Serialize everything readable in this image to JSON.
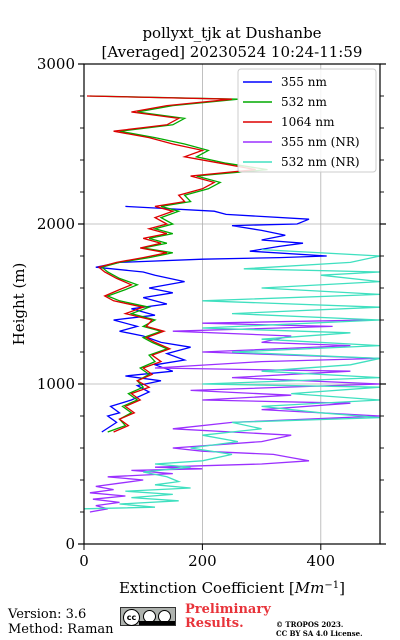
{
  "chart_data": {
    "type": "line",
    "title": "pollyxt_tjk at Dushanbe",
    "subtitle": "[Averaged] 20230524 10:24-11:59",
    "xlabel": "Extinction Coefficient [Mm⁻¹]",
    "ylabel": "Height (m)",
    "xlim": [
      0,
      500
    ],
    "ylim": [
      0,
      3000
    ],
    "xticks": [
      0,
      200,
      400
    ],
    "yticks": [
      0,
      1000,
      2000,
      3000
    ],
    "grid": true,
    "legend_position": "top-right",
    "series": [
      {
        "name": "355 nm",
        "color": "#0000ff",
        "points": [
          [
            30,
            700
          ],
          [
            55,
            760
          ],
          [
            40,
            800
          ],
          [
            60,
            820
          ],
          [
            45,
            860
          ],
          [
            80,
            900
          ],
          [
            110,
            950
          ],
          [
            90,
            990
          ],
          [
            130,
            1020
          ],
          [
            70,
            1050
          ],
          [
            150,
            1080
          ],
          [
            120,
            1120
          ],
          [
            170,
            1150
          ],
          [
            140,
            1190
          ],
          [
            180,
            1230
          ],
          [
            130,
            1260
          ],
          [
            100,
            1300
          ],
          [
            60,
            1330
          ],
          [
            90,
            1360
          ],
          [
            50,
            1400
          ],
          [
            120,
            1430
          ],
          [
            80,
            1470
          ],
          [
            140,
            1500
          ],
          [
            100,
            1540
          ],
          [
            150,
            1570
          ],
          [
            110,
            1600
          ],
          [
            170,
            1640
          ],
          [
            120,
            1680
          ],
          [
            100,
            1700
          ],
          [
            20,
            1730
          ],
          [
            60,
            1760
          ],
          [
            200,
            1780
          ],
          [
            330,
            1790
          ],
          [
            410,
            1800
          ],
          [
            280,
            1830
          ],
          [
            330,
            1860
          ],
          [
            370,
            1880
          ],
          [
            300,
            1900
          ],
          [
            340,
            1930
          ],
          [
            300,
            1960
          ],
          [
            250,
            1990
          ],
          [
            360,
            2000
          ],
          [
            380,
            2030
          ],
          [
            240,
            2060
          ],
          [
            220,
            2080
          ],
          [
            120,
            2100
          ],
          [
            70,
            2110
          ]
        ]
      },
      {
        "name": "532 nm",
        "color": "#00aa00",
        "points": [
          [
            40,
            700
          ],
          [
            70,
            740
          ],
          [
            60,
            780
          ],
          [
            80,
            820
          ],
          [
            65,
            860
          ],
          [
            90,
            900
          ],
          [
            75,
            940
          ],
          [
            100,
            980
          ],
          [
            90,
            1020
          ],
          [
            110,
            1060
          ],
          [
            95,
            1100
          ],
          [
            120,
            1140
          ],
          [
            110,
            1180
          ],
          [
            140,
            1220
          ],
          [
            115,
            1260
          ],
          [
            100,
            1290
          ],
          [
            130,
            1330
          ],
          [
            100,
            1360
          ],
          [
            120,
            1400
          ],
          [
            80,
            1440
          ],
          [
            110,
            1480
          ],
          [
            60,
            1520
          ],
          [
            40,
            1550
          ],
          [
            70,
            1590
          ],
          [
            90,
            1620
          ],
          [
            60,
            1660
          ],
          [
            40,
            1700
          ],
          [
            30,
            1730
          ],
          [
            60,
            1760
          ],
          [
            110,
            1790
          ],
          [
            150,
            1820
          ],
          [
            100,
            1850
          ],
          [
            140,
            1880
          ],
          [
            110,
            1910
          ],
          [
            150,
            1940
          ],
          [
            120,
            1970
          ],
          [
            150,
            2000
          ],
          [
            130,
            2040
          ],
          [
            160,
            2080
          ],
          [
            130,
            2110
          ],
          [
            180,
            2140
          ],
          [
            170,
            2180
          ],
          [
            210,
            2220
          ],
          [
            230,
            2260
          ],
          [
            190,
            2300
          ],
          [
            310,
            2340
          ],
          [
            240,
            2380
          ],
          [
            190,
            2420
          ],
          [
            210,
            2460
          ],
          [
            170,
            2500
          ],
          [
            120,
            2540
          ],
          [
            60,
            2580
          ],
          [
            150,
            2620
          ],
          [
            170,
            2660
          ],
          [
            90,
            2700
          ],
          [
            150,
            2740
          ],
          [
            260,
            2780
          ],
          [
            10,
            2800
          ]
        ]
      },
      {
        "name": "1064 nm",
        "color": "#dd0000",
        "points": [
          [
            50,
            700
          ],
          [
            75,
            740
          ],
          [
            60,
            780
          ],
          [
            85,
            820
          ],
          [
            70,
            860
          ],
          [
            95,
            900
          ],
          [
            80,
            940
          ],
          [
            110,
            980
          ],
          [
            90,
            1020
          ],
          [
            115,
            1060
          ],
          [
            100,
            1100
          ],
          [
            130,
            1140
          ],
          [
            115,
            1180
          ],
          [
            145,
            1220
          ],
          [
            120,
            1260
          ],
          [
            105,
            1290
          ],
          [
            135,
            1330
          ],
          [
            105,
            1360
          ],
          [
            115,
            1400
          ],
          [
            70,
            1440
          ],
          [
            100,
            1480
          ],
          [
            50,
            1520
          ],
          [
            35,
            1550
          ],
          [
            60,
            1590
          ],
          [
            80,
            1620
          ],
          [
            55,
            1660
          ],
          [
            35,
            1700
          ],
          [
            25,
            1730
          ],
          [
            55,
            1760
          ],
          [
            100,
            1790
          ],
          [
            140,
            1820
          ],
          [
            95,
            1850
          ],
          [
            130,
            1880
          ],
          [
            100,
            1910
          ],
          [
            140,
            1940
          ],
          [
            110,
            1970
          ],
          [
            140,
            2000
          ],
          [
            120,
            2040
          ],
          [
            150,
            2080
          ],
          [
            120,
            2110
          ],
          [
            170,
            2140
          ],
          [
            160,
            2180
          ],
          [
            200,
            2220
          ],
          [
            220,
            2260
          ],
          [
            180,
            2300
          ],
          [
            290,
            2340
          ],
          [
            230,
            2380
          ],
          [
            170,
            2420
          ],
          [
            200,
            2460
          ],
          [
            150,
            2500
          ],
          [
            110,
            2540
          ],
          [
            50,
            2580
          ],
          [
            140,
            2620
          ],
          [
            160,
            2660
          ],
          [
            80,
            2700
          ],
          [
            140,
            2740
          ],
          [
            250,
            2780
          ],
          [
            5,
            2800
          ]
        ]
      },
      {
        "name": "355 nm (NR)",
        "color": "#9b30ff",
        "points": [
          [
            10,
            200
          ],
          [
            40,
            220
          ],
          [
            20,
            240
          ],
          [
            60,
            260
          ],
          [
            15,
            280
          ],
          [
            70,
            300
          ],
          [
            10,
            320
          ],
          [
            50,
            340
          ],
          [
            20,
            360
          ],
          [
            60,
            380
          ],
          [
            100,
            400
          ],
          [
            40,
            420
          ],
          [
            150,
            440
          ],
          [
            80,
            460
          ],
          [
            200,
            470
          ],
          [
            120,
            480
          ],
          [
            300,
            500
          ],
          [
            380,
            520
          ],
          [
            350,
            540
          ],
          [
            320,
            560
          ],
          [
            200,
            580
          ],
          [
            150,
            600
          ],
          [
            300,
            640
          ],
          [
            350,
            680
          ],
          [
            150,
            720
          ],
          [
            250,
            760
          ],
          [
            500,
            800
          ],
          [
            300,
            840
          ],
          [
            450,
            880
          ],
          [
            200,
            900
          ],
          [
            350,
            930
          ],
          [
            180,
            960
          ],
          [
            500,
            1000
          ],
          [
            250,
            1040
          ],
          [
            450,
            1080
          ],
          [
            120,
            1100
          ],
          [
            300,
            1140
          ],
          [
            500,
            1160
          ],
          [
            200,
            1200
          ],
          [
            450,
            1240
          ],
          [
            300,
            1260
          ],
          [
            350,
            1300
          ],
          [
            150,
            1330
          ],
          [
            420,
            1360
          ],
          [
            200,
            1380
          ],
          [
            480,
            1400
          ]
        ]
      },
      {
        "name": "532 nm (NR)",
        "color": "#40e0c0",
        "points": [
          [
            0,
            220
          ],
          [
            120,
            230
          ],
          [
            60,
            250
          ],
          [
            160,
            270
          ],
          [
            80,
            290
          ],
          [
            150,
            310
          ],
          [
            70,
            330
          ],
          [
            180,
            350
          ],
          [
            120,
            370
          ],
          [
            160,
            390
          ],
          [
            140,
            420
          ],
          [
            100,
            450
          ],
          [
            180,
            480
          ],
          [
            120,
            500
          ],
          [
            200,
            520
          ],
          [
            250,
            560
          ],
          [
            180,
            600
          ],
          [
            260,
            640
          ],
          [
            200,
            680
          ],
          [
            300,
            720
          ],
          [
            250,
            760
          ],
          [
            500,
            790
          ],
          [
            400,
            820
          ],
          [
            300,
            860
          ],
          [
            500,
            900
          ],
          [
            350,
            940
          ],
          [
            500,
            980
          ],
          [
            200,
            1000
          ],
          [
            500,
            1040
          ],
          [
            300,
            1080
          ],
          [
            450,
            1120
          ],
          [
            500,
            1160
          ],
          [
            250,
            1200
          ],
          [
            500,
            1240
          ],
          [
            300,
            1280
          ],
          [
            450,
            1320
          ],
          [
            200,
            1350
          ],
          [
            500,
            1400
          ],
          [
            250,
            1440
          ],
          [
            500,
            1480
          ],
          [
            200,
            1520
          ],
          [
            500,
            1560
          ],
          [
            300,
            1600
          ],
          [
            500,
            1640
          ],
          [
            400,
            1680
          ],
          [
            500,
            1700
          ],
          [
            270,
            1720
          ],
          [
            450,
            1760
          ],
          [
            500,
            1800
          ],
          [
            300,
            1840
          ]
        ]
      }
    ]
  },
  "footer": {
    "version": "Version: 3.6",
    "method": "Method: Raman",
    "preliminary_line1": "Preliminary",
    "preliminary_line2": "Results.",
    "copyright_line1": "© TROPOS 2023.",
    "copyright_line2": "CC BY SA 4.0 License.",
    "license_badge_icon": "cc-by-sa-icon",
    "badge_cc": "cc"
  }
}
